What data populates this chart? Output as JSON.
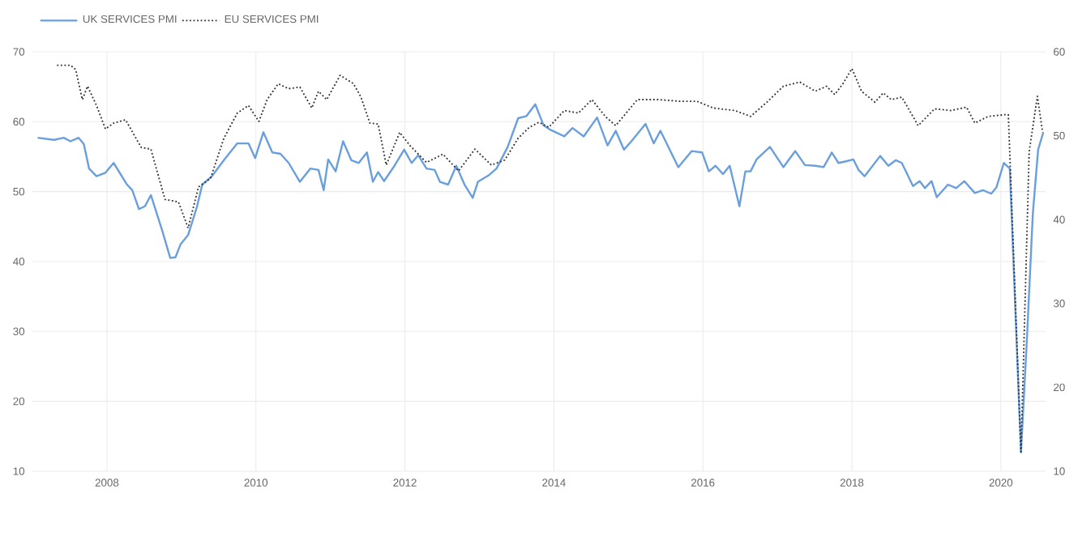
{
  "chart_data": {
    "type": "line",
    "xlim": [
      2007.0,
      2020.6
    ],
    "xticks": [
      2008,
      2010,
      2012,
      2014,
      2016,
      2018,
      2020
    ],
    "ylim": [
      10,
      70
    ],
    "yticks": [
      10,
      20,
      30,
      40,
      50,
      60,
      70
    ],
    "y2lim": [
      10,
      60
    ],
    "y2ticks": [
      10,
      20,
      30,
      40,
      50,
      60
    ],
    "grid": true,
    "legend": "top left",
    "series": [
      {
        "name": "UK SERVICES PMI",
        "color": "#6a9fde",
        "line_style": "solid",
        "x": [
          2007.07,
          2007.29,
          2007.42,
          2007.51,
          2007.62,
          2007.69,
          2007.76,
          2007.86,
          2007.98,
          2008.09,
          2008.27,
          2008.34,
          2008.43,
          2008.51,
          2008.59,
          2008.74,
          2008.85,
          2008.92,
          2008.99,
          2009.09,
          2009.21,
          2009.28,
          2009.41,
          2009.57,
          2009.75,
          2009.9,
          2009.99,
          2010.1,
          2010.22,
          2010.33,
          2010.44,
          2010.59,
          2010.73,
          2010.84,
          2010.91,
          2010.97,
          2011.07,
          2011.17,
          2011.28,
          2011.38,
          2011.49,
          2011.57,
          2011.64,
          2011.72,
          2011.86,
          2011.99,
          2012.09,
          2012.18,
          2012.29,
          2012.4,
          2012.47,
          2012.58,
          2012.69,
          2012.8,
          2012.91,
          2012.98,
          2013.12,
          2013.23,
          2013.38,
          2013.52,
          2013.63,
          2013.75,
          2013.86,
          2013.96,
          2014.14,
          2014.25,
          2014.4,
          2014.58,
          2014.72,
          2014.83,
          2014.94,
          2015.04,
          2015.23,
          2015.34,
          2015.43,
          2015.67,
          2015.85,
          2015.99,
          2016.08,
          2016.17,
          2016.27,
          2016.36,
          2016.49,
          2016.57,
          2016.64,
          2016.72,
          2016.9,
          2017.08,
          2017.24,
          2017.37,
          2017.51,
          2017.62,
          2017.73,
          2017.82,
          2017.91,
          2018.02,
          2018.09,
          2018.17,
          2018.38,
          2018.49,
          2018.59,
          2018.67,
          2018.82,
          2018.91,
          2018.98,
          2019.07,
          2019.14,
          2019.29,
          2019.4,
          2019.51,
          2019.65,
          2019.76,
          2019.87,
          2019.94,
          2020.04,
          2020.12,
          2020.27,
          2020.35,
          2020.43,
          2020.5,
          2020.57
        ],
        "values": [
          57.7,
          57.4,
          57.7,
          57.2,
          57.7,
          56.8,
          53.3,
          52.2,
          52.7,
          54.1,
          51.0,
          50.2,
          47.5,
          47.9,
          49.5,
          44.5,
          40.5,
          40.6,
          42.5,
          43.8,
          47.9,
          51.0,
          52.2,
          54.5,
          56.9,
          56.9,
          54.8,
          58.5,
          55.6,
          55.4,
          54.1,
          51.4,
          53.3,
          53.1,
          50.2,
          54.6,
          52.9,
          57.2,
          54.5,
          54.1,
          55.6,
          51.4,
          52.8,
          51.5,
          53.7,
          56.0,
          54.1,
          55.2,
          53.3,
          53.1,
          51.4,
          51.0,
          53.7,
          51.0,
          49.1,
          51.4,
          52.3,
          53.3,
          56.4,
          60.5,
          60.8,
          62.5,
          59.5,
          58.8,
          57.9,
          59.1,
          57.9,
          60.6,
          56.6,
          58.7,
          56.0,
          57.2,
          59.7,
          56.9,
          58.7,
          53.5,
          55.8,
          55.6,
          52.9,
          53.7,
          52.5,
          53.7,
          47.9,
          52.9,
          52.9,
          54.6,
          56.4,
          53.5,
          55.8,
          53.8,
          53.7,
          53.5,
          55.6,
          54.1,
          54.3,
          54.6,
          53.1,
          52.2,
          55.1,
          53.7,
          54.5,
          54.1,
          50.8,
          51.5,
          50.5,
          51.5,
          49.2,
          51.0,
          50.5,
          51.5,
          49.8,
          50.2,
          49.7,
          50.6,
          54.1,
          53.3,
          12.7,
          29,
          47,
          56,
          58.5
        ]
      },
      {
        "name": "EU SERVICES PMI",
        "color": "#333333",
        "line_style": "dotted",
        "axis": "y2",
        "x": [
          2007.33,
          2007.51,
          2007.58,
          2007.67,
          2007.74,
          2007.86,
          2007.98,
          2008.09,
          2008.25,
          2008.46,
          2008.59,
          2008.78,
          2008.96,
          2009.09,
          2009.23,
          2009.39,
          2009.57,
          2009.75,
          2009.9,
          2010.04,
          2010.15,
          2010.3,
          2010.44,
          2010.59,
          2010.75,
          2010.84,
          2010.95,
          2011.13,
          2011.31,
          2011.41,
          2011.53,
          2011.64,
          2011.75,
          2011.93,
          2012.07,
          2012.29,
          2012.51,
          2012.72,
          2012.94,
          2013.16,
          2013.34,
          2013.52,
          2013.67,
          2013.8,
          2013.93,
          2014.14,
          2014.33,
          2014.51,
          2014.69,
          2014.83,
          2015.12,
          2015.41,
          2015.7,
          2015.92,
          2016.14,
          2016.43,
          2016.64,
          2016.86,
          2017.08,
          2017.3,
          2017.51,
          2017.66,
          2017.77,
          2017.88,
          2018.0,
          2018.13,
          2018.31,
          2018.42,
          2018.53,
          2018.67,
          2018.89,
          2019.11,
          2019.33,
          2019.54,
          2019.65,
          2019.83,
          2020.05,
          2020.1,
          2020.27,
          2020.38,
          2020.49,
          2020.56
        ],
        "values": [
          58.4,
          58.4,
          57.9,
          54.3,
          55.9,
          53.6,
          50.8,
          51.5,
          51.9,
          48.6,
          48.4,
          42.4,
          42.1,
          39.0,
          43.9,
          44.9,
          49.7,
          52.7,
          53.6,
          51.7,
          54.3,
          56.2,
          55.6,
          55.8,
          53.3,
          55.3,
          54.3,
          57.2,
          56.2,
          54.6,
          51.5,
          51.4,
          46.5,
          50.4,
          48.8,
          46.8,
          47.8,
          45.8,
          48.4,
          46.5,
          47.1,
          49.7,
          51.0,
          51.6,
          51.0,
          53.0,
          52.7,
          54.3,
          52.3,
          51.2,
          54.3,
          54.3,
          54.1,
          54.1,
          53.3,
          53.0,
          52.3,
          54.0,
          55.9,
          56.4,
          55.3,
          55.9,
          54.9,
          56.2,
          58.0,
          55.3,
          54.0,
          55.1,
          54.3,
          54.6,
          51.2,
          53.2,
          53.0,
          53.4,
          51.5,
          52.3,
          52.5,
          52.5,
          12.3,
          48.1,
          54.7,
          50.4
        ]
      }
    ]
  }
}
